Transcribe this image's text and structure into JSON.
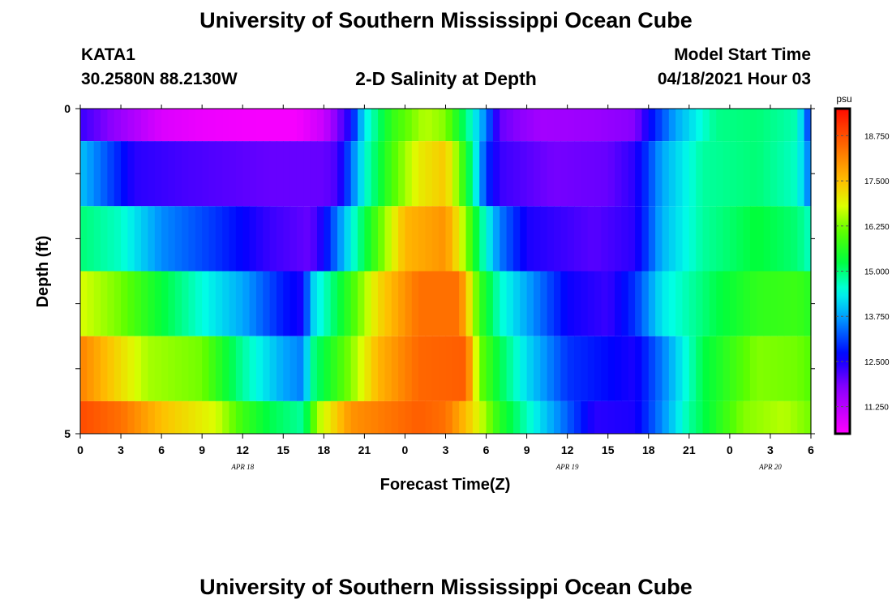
{
  "page": {
    "title_top": "University of Southern Mississippi Ocean Cube",
    "title_bottom": "University of Southern Mississippi Ocean Cube",
    "station_id": "KATA1",
    "coords": "30.2580N  88.2130W",
    "plot_title": "2-D Salinity at Depth",
    "model_start_label": "Model Start Time",
    "model_start_value": "04/18/2021 Hour 03"
  },
  "chart_data": {
    "type": "heatmap",
    "title": "2-D Salinity at Depth",
    "xlabel": "Forecast Time(Z)",
    "ylabel": "Depth (ft)",
    "x_ticks": [
      "0",
      "3",
      "6",
      "9",
      "12",
      "15",
      "18",
      "21",
      "0",
      "3",
      "6",
      "9",
      "12",
      "15",
      "18",
      "21",
      "0",
      "3",
      "6"
    ],
    "date_labels": [
      {
        "label": "APR 18",
        "tick_index": 4
      },
      {
        "label": "APR 19",
        "tick_index": 12
      },
      {
        "label": "APR 20",
        "tick_index": 17
      }
    ],
    "y_tick_labels": [
      {
        "label": "0",
        "depth": 0
      },
      {
        "label": "5",
        "depth": 5
      }
    ],
    "ylim": [
      0,
      5
    ],
    "x_range_hours": [
      0,
      54
    ],
    "colorbar": {
      "unit": "psu",
      "min": 10.5,
      "max": 19.5,
      "ticks": [
        "11.250",
        "12.500",
        "13.750",
        "15.000",
        "16.250",
        "17.500",
        "18.750"
      ]
    },
    "layers": [
      {
        "depth_range": [
          0.0,
          0.5
        ],
        "keys": [
          [
            0,
            12.3
          ],
          [
            3,
            11.6
          ],
          [
            6,
            10.9
          ],
          [
            9,
            10.7
          ],
          [
            13,
            10.6
          ],
          [
            16,
            10.6
          ],
          [
            18,
            11.1
          ],
          [
            20,
            12.6
          ],
          [
            21,
            14.3
          ],
          [
            23,
            15.7
          ],
          [
            25.5,
            16.6
          ],
          [
            27,
            16.3
          ],
          [
            29,
            14.5
          ],
          [
            30,
            13.5
          ],
          [
            31,
            12.0
          ],
          [
            34,
            11.5
          ],
          [
            38,
            11.6
          ],
          [
            41,
            11.8
          ],
          [
            42,
            12.6
          ],
          [
            44,
            13.8
          ],
          [
            47,
            14.9
          ],
          [
            50,
            15.0
          ],
          [
            53,
            14.7
          ],
          [
            54,
            12.8
          ]
        ]
      },
      {
        "depth_range": [
          0.5,
          1.5
        ],
        "keys": [
          [
            0,
            14.0
          ],
          [
            2,
            13.2
          ],
          [
            4,
            12.4
          ],
          [
            8,
            12.2
          ],
          [
            14,
            12.0
          ],
          [
            18,
            12.0
          ],
          [
            19,
            12.2
          ],
          [
            21,
            14.5
          ],
          [
            23,
            15.9
          ],
          [
            25,
            17.0
          ],
          [
            27,
            17.4
          ],
          [
            28,
            16.2
          ],
          [
            29,
            14.8
          ],
          [
            30,
            13.0
          ],
          [
            31,
            12.3
          ],
          [
            35,
            11.9
          ],
          [
            39,
            12.0
          ],
          [
            41,
            12.4
          ],
          [
            43,
            13.8
          ],
          [
            46,
            14.8
          ],
          [
            50,
            15.0
          ],
          [
            53,
            14.6
          ],
          [
            54,
            13.3
          ]
        ]
      },
      {
        "depth_range": [
          1.5,
          2.5
        ],
        "keys": [
          [
            0,
            15.0
          ],
          [
            3,
            14.6
          ],
          [
            6,
            13.6
          ],
          [
            10,
            13.0
          ],
          [
            14,
            12.3
          ],
          [
            17,
            12.0
          ],
          [
            18,
            12.6
          ],
          [
            20,
            14.4
          ],
          [
            22,
            16.0
          ],
          [
            24,
            17.6
          ],
          [
            27,
            18.0
          ],
          [
            28,
            17.0
          ],
          [
            29.5,
            15.0
          ],
          [
            31,
            13.5
          ],
          [
            33,
            12.5
          ],
          [
            38,
            12.1
          ],
          [
            41,
            12.4
          ],
          [
            43,
            13.9
          ],
          [
            46,
            14.8
          ],
          [
            50,
            15.3
          ],
          [
            53,
            15.0
          ],
          [
            54,
            14.6
          ]
        ]
      },
      {
        "depth_range": [
          2.5,
          3.5
        ],
        "keys": [
          [
            0,
            16.8
          ],
          [
            3,
            16.2
          ],
          [
            6,
            15.3
          ],
          [
            9,
            14.5
          ],
          [
            12,
            13.8
          ],
          [
            15,
            12.8
          ],
          [
            16.5,
            12.5
          ],
          [
            17,
            14.0
          ],
          [
            20,
            15.8
          ],
          [
            22,
            17.2
          ],
          [
            25,
            18.4
          ],
          [
            28,
            18.4
          ],
          [
            29.5,
            15.8
          ],
          [
            31,
            14.6
          ],
          [
            33,
            13.8
          ],
          [
            36,
            12.6
          ],
          [
            39,
            12.3
          ],
          [
            41,
            13.0
          ],
          [
            43,
            14.3
          ],
          [
            47,
            15.2
          ],
          [
            50,
            15.7
          ],
          [
            53,
            15.8
          ],
          [
            54,
            15.6
          ]
        ]
      },
      {
        "depth_range": [
          3.5,
          4.5
        ],
        "keys": [
          [
            0,
            18.2
          ],
          [
            2,
            17.5
          ],
          [
            5,
            16.5
          ],
          [
            9,
            16.2
          ],
          [
            12,
            14.8
          ],
          [
            15,
            13.8
          ],
          [
            16.5,
            13.5
          ],
          [
            17,
            14.8
          ],
          [
            20,
            16.3
          ],
          [
            22,
            17.6
          ],
          [
            25,
            18.5
          ],
          [
            28.5,
            18.6
          ],
          [
            29.5,
            16.2
          ],
          [
            31,
            15.2
          ],
          [
            33,
            14.2
          ],
          [
            36,
            13.0
          ],
          [
            41,
            12.5
          ],
          [
            43,
            13.5
          ],
          [
            46,
            15.2
          ],
          [
            50,
            16.3
          ],
          [
            53,
            16.2
          ],
          [
            54,
            16.0
          ]
        ]
      },
      {
        "depth_range": [
          4.5,
          5.0
        ],
        "keys": [
          [
            0,
            18.8
          ],
          [
            3,
            18.4
          ],
          [
            6,
            17.5
          ],
          [
            10,
            16.8
          ],
          [
            12,
            15.8
          ],
          [
            14,
            15.2
          ],
          [
            16.5,
            14.8
          ],
          [
            17.5,
            16.5
          ],
          [
            20,
            18.0
          ],
          [
            25,
            18.6
          ],
          [
            27,
            18.4
          ],
          [
            29,
            17.2
          ],
          [
            31,
            15.6
          ],
          [
            34,
            14.2
          ],
          [
            38,
            12.4
          ],
          [
            41,
            12.5
          ],
          [
            43,
            13.6
          ],
          [
            45,
            14.8
          ],
          [
            49,
            16.3
          ],
          [
            52,
            16.6
          ],
          [
            54,
            16.2
          ]
        ]
      }
    ]
  }
}
